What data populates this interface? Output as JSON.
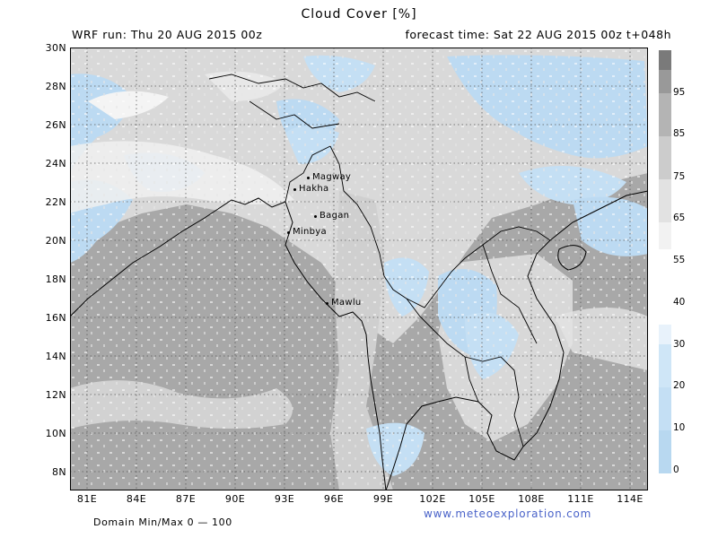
{
  "header": {
    "title": "Cloud Cover [%]",
    "run": "WRF run: Thu 20 AUG 2015 00z",
    "forecast": "forecast time: Sat 22 AUG 2015 00z  t+048h"
  },
  "map": {
    "lat_labels": [
      "30N",
      "28N",
      "26N",
      "24N",
      "22N",
      "20N",
      "18N",
      "16N",
      "14N",
      "12N",
      "10N",
      "8N"
    ],
    "lon_labels": [
      "81E",
      "84E",
      "87E",
      "90E",
      "93E",
      "96E",
      "99E",
      "102E",
      "105E",
      "108E",
      "111E",
      "114E"
    ],
    "cities": [
      {
        "name": "Magway"
      },
      {
        "name": "Hakha"
      },
      {
        "name": "Bagan"
      },
      {
        "name": "Minbya"
      },
      {
        "name": "Mawlu"
      }
    ]
  },
  "colorbar": {
    "labels": [
      "95",
      "85",
      "75",
      "65",
      "55",
      "40",
      "30",
      "20",
      "10",
      "0"
    ],
    "colors": {
      "c0": "#b8d8f0",
      "c10": "#c4dff4",
      "c20": "#cfe6f7",
      "c30": "#e8f2fb",
      "c40": "#ffffff",
      "c55": "#f2f2f2",
      "c65": "#e2e2e2",
      "c75": "#cccccc",
      "c85": "#b4b4b4",
      "c95": "#999999",
      "c100": "#7a7a7a"
    }
  },
  "footer": {
    "domain": "Domain Min/Max 0 — 100",
    "url": "www.meteoexploration.com"
  }
}
